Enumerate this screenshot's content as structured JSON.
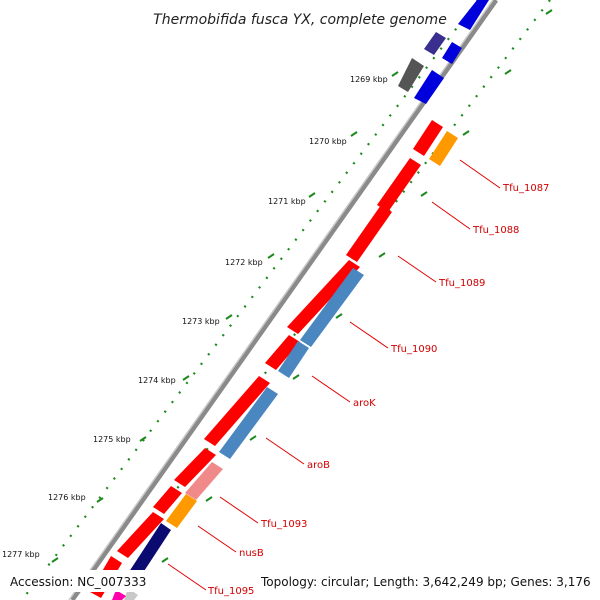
{
  "title": "Thermobifida fusca YX, complete genome",
  "accession": "Accession: NC_007333",
  "topology": "Topology: circular; Length: 3,642,249 bp; Genes: 3,176",
  "colors": {
    "backbone": "#8a8a8a",
    "tick": "#1e8a1e",
    "label_line": "#e00000",
    "label_text": "#d10000"
  },
  "kbp_labels": [
    "1269 kbp",
    "1270 kbp",
    "1271 kbp",
    "1272 kbp",
    "1273 kbp",
    "1274 kbp",
    "1275 kbp",
    "1276 kbp",
    "1277 kbp"
  ],
  "gene_labels": [
    "Tfu_1087",
    "Tfu_1088",
    "Tfu_1089",
    "Tfu_1090",
    "aroK",
    "aroB",
    "Tfu_1093",
    "nusB",
    "Tfu_1095"
  ]
}
